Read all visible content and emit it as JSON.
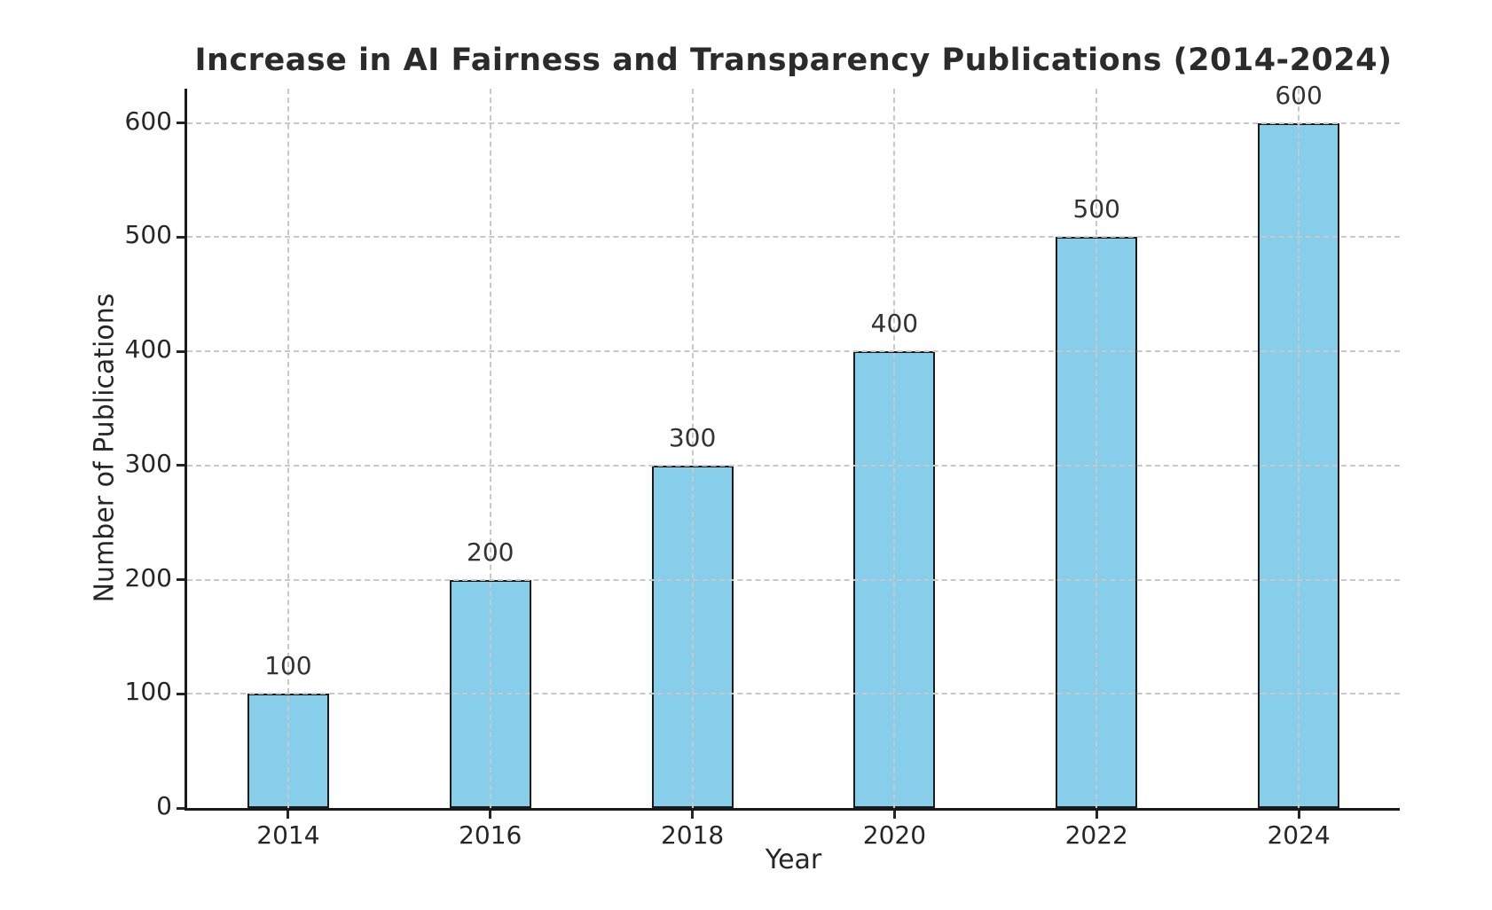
{
  "chart_data": {
    "type": "bar",
    "title": "Increase in AI Fairness and Transparency Publications (2014-2024)",
    "xlabel": "Year",
    "ylabel": "Number of Publications",
    "categories": [
      "2014",
      "2016",
      "2018",
      "2020",
      "2022",
      "2024"
    ],
    "values": [
      100,
      200,
      300,
      400,
      500,
      600
    ],
    "bar_value_labels": [
      "100",
      "200",
      "300",
      "400",
      "500",
      "600"
    ],
    "y_ticks": [
      0,
      100,
      200,
      300,
      400,
      500,
      600
    ],
    "ylim": [
      0,
      630
    ],
    "grid": "dashed both-axes drawn-above-bars",
    "legend_position": "none",
    "colors": {
      "bar_fill": "#87CEEB",
      "bar_edge": "#1a1a1a",
      "grid": "#c8c8c8",
      "axis": "#1a1a1a",
      "text": "#262626"
    }
  }
}
